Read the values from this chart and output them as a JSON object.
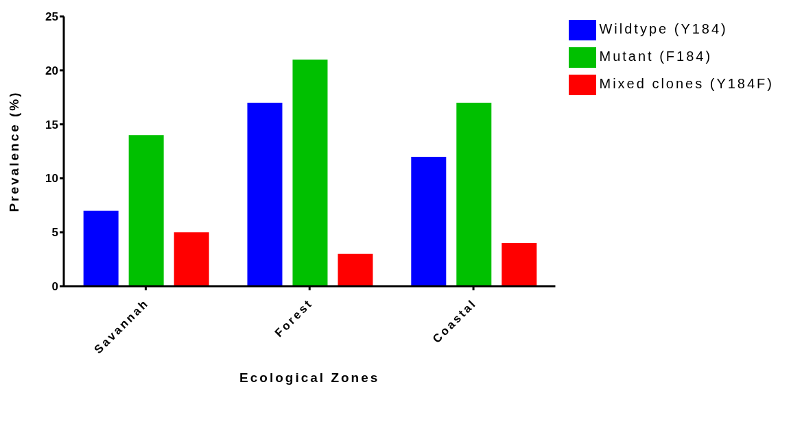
{
  "chart_data": {
    "type": "bar",
    "xlabel": "Ecological Zones",
    "ylabel": "Prevalence (%)",
    "categories": [
      "Savannah",
      "Forest",
      "Coastal"
    ],
    "series": [
      {
        "name": "Wildtype (Y184)",
        "color": "#0000ff",
        "values": [
          7,
          17,
          12
        ]
      },
      {
        "name": "Mutant (F184)",
        "color": "#00c000",
        "values": [
          14,
          21,
          17
        ]
      },
      {
        "name": "Mixed clones (Y184F)",
        "color": "#ff0000",
        "values": [
          5,
          3,
          4
        ]
      }
    ],
    "ylim": [
      0,
      25
    ],
    "yticks": [
      0,
      5,
      10,
      15,
      20,
      25
    ],
    "grid": false,
    "legend": "top right"
  }
}
